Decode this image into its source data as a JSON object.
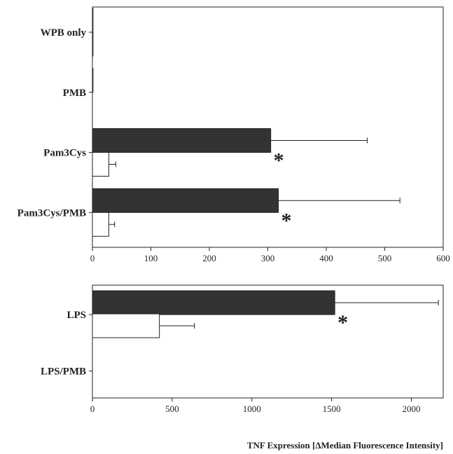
{
  "chart_data": [
    {
      "type": "bar",
      "orientation": "horizontal",
      "categories": [
        "WPB only",
        "PMB",
        "Pam3Cys",
        "Pam3Cys/PMB"
      ],
      "series": [
        {
          "values": [
            1,
            1,
            305,
            318
          ],
          "errors": [
            0,
            0,
            165,
            208
          ],
          "color": "#333333"
        },
        {
          "values": [
            1,
            0,
            28,
            28
          ],
          "errors": [
            0,
            0,
            12,
            10
          ],
          "color": "#ffffff"
        }
      ],
      "significance": [
        "",
        "",
        "*",
        "*"
      ],
      "xlim": [
        0,
        600
      ],
      "xticks": [
        "0",
        "100",
        "200",
        "300",
        "400",
        "500",
        "600"
      ],
      "grid": false
    },
    {
      "type": "bar",
      "orientation": "horizontal",
      "categories": [
        "LPS",
        "LPS/PMB"
      ],
      "series": [
        {
          "values": [
            1520,
            0
          ],
          "errors": [
            650,
            0
          ],
          "color": "#333333"
        },
        {
          "values": [
            420,
            0
          ],
          "errors": [
            220,
            0
          ],
          "color": "#ffffff"
        }
      ],
      "significance": [
        "*",
        ""
      ],
      "xlim": [
        0,
        2200
      ],
      "xticks": [
        "0",
        "500",
        "1000",
        "1500",
        "2000"
      ],
      "xlabel": "TNF Expression [ΔMedian Fluorescence Intensity]",
      "grid": false
    }
  ]
}
